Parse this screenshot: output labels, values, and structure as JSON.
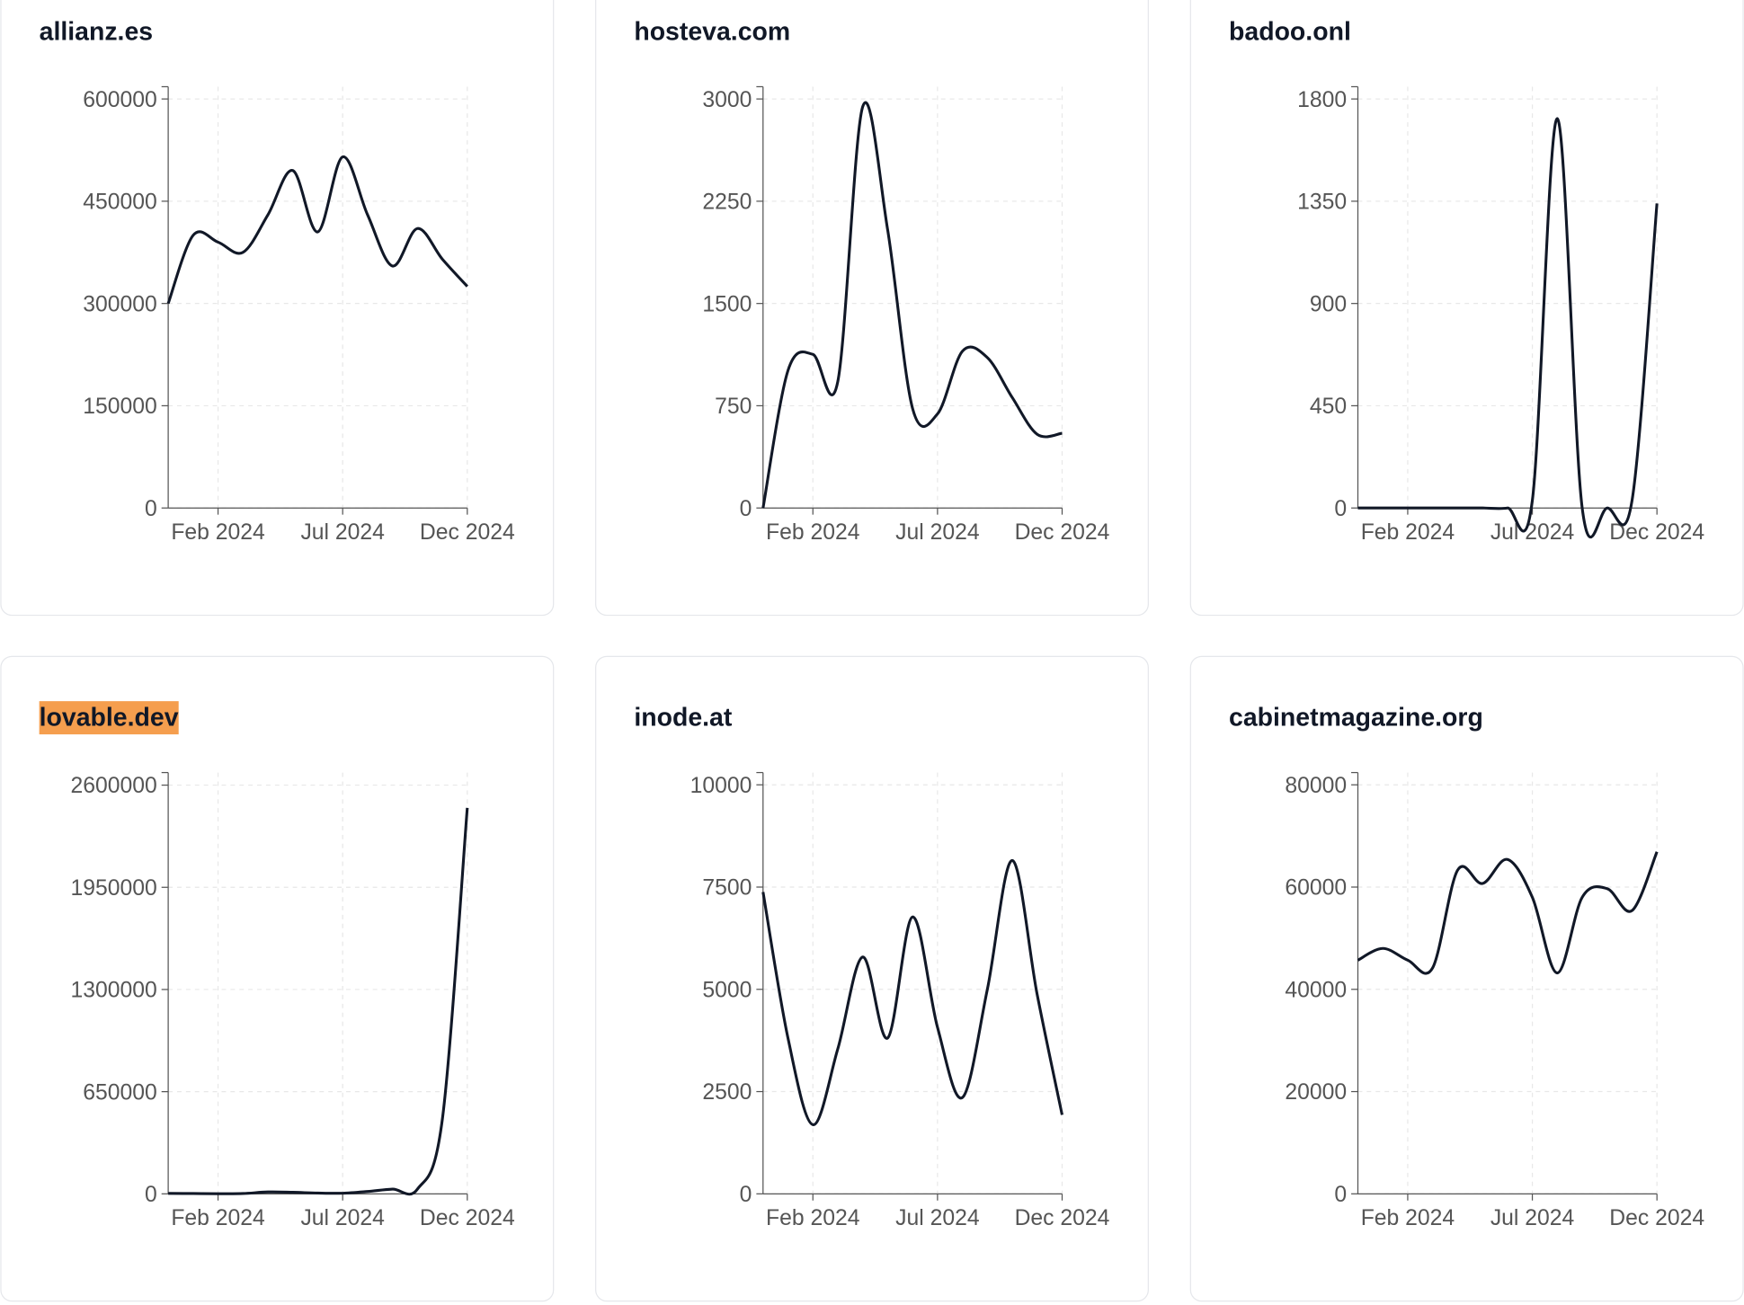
{
  "chart_data": [
    {
      "type": "line",
      "title": "allianz.es",
      "categories": [
        null,
        null,
        "Feb 2024",
        null,
        null,
        null,
        null,
        "Jul 2024",
        null,
        null,
        null,
        null,
        "Dec 2024"
      ],
      "series": [
        {
          "name": null,
          "color": "#111827",
          "values": [
            300000,
            400000,
            390000,
            375000,
            430000,
            495000,
            405000,
            515000,
            430000,
            355000,
            410000,
            365000,
            325000
          ]
        }
      ],
      "ylim": [
        0,
        618000
      ],
      "yticks": [
        0,
        150000,
        300000,
        450000,
        600000
      ],
      "grid": true
    },
    {
      "type": "line",
      "title": "hosteva.com",
      "categories": [
        null,
        null,
        "Feb 2024",
        null,
        null,
        null,
        null,
        "Jul 2024",
        null,
        null,
        null,
        null,
        "Dec 2024"
      ],
      "series": [
        {
          "name": null,
          "color": "#111827",
          "values": [
            0,
            1008,
            1127,
            928,
            2944,
            2040,
            730,
            690,
            1150,
            1103,
            810,
            540,
            548
          ]
        }
      ],
      "ylim": [
        0,
        3090
      ],
      "yticks": [
        0,
        750,
        1500,
        2250,
        3000
      ],
      "grid": true
    },
    {
      "type": "line",
      "title": "badoo.onl",
      "categories": [
        null,
        null,
        "Feb 2024",
        null,
        null,
        null,
        null,
        "Jul 2024",
        null,
        null,
        null,
        null,
        "Dec 2024"
      ],
      "series": [
        {
          "name": null,
          "color": "#111827",
          "values": [
            0,
            0,
            0,
            0,
            0,
            0,
            0,
            33,
            1714,
            0,
            0,
            33,
            1340
          ]
        }
      ],
      "ylim": [
        0,
        1854
      ],
      "yticks": [
        0,
        450,
        900,
        1350,
        1800
      ],
      "grid": true
    },
    {
      "type": "line",
      "title": "lovable.dev",
      "title_background": "#f59e4e",
      "categories": [
        null,
        null,
        "Feb 2024",
        null,
        null,
        null,
        null,
        "Jul 2024",
        null,
        null,
        null,
        null,
        "Dec 2024"
      ],
      "series": [
        {
          "name": null,
          "color": "#111827",
          "values": [
            3000,
            2000,
            1000,
            2000,
            12000,
            10000,
            5000,
            4000,
            15000,
            30000,
            30000,
            475000,
            2455000
          ]
        }
      ],
      "ylim": [
        0,
        2680000
      ],
      "yticks": [
        0,
        650000,
        1300000,
        1950000,
        2600000
      ],
      "grid": true
    },
    {
      "type": "line",
      "title": "inode.at",
      "categories": [
        null,
        null,
        "Feb 2024",
        null,
        null,
        null,
        null,
        "Jul 2024",
        null,
        null,
        null,
        null,
        "Dec 2024"
      ],
      "series": [
        {
          "name": null,
          "color": "#111827",
          "values": [
            7380,
            3810,
            1690,
            3545,
            5790,
            3810,
            6770,
            4070,
            2355,
            5000,
            8150,
            4870,
            1930
          ]
        }
      ],
      "ylim": [
        0,
        10300
      ],
      "yticks": [
        0,
        2500,
        5000,
        7500,
        10000
      ],
      "grid": true
    },
    {
      "type": "line",
      "title": "cabinetmagazine.org",
      "categories": [
        null,
        null,
        "Feb 2024",
        null,
        null,
        null,
        null,
        "Jul 2024",
        null,
        null,
        null,
        null,
        "Dec 2024"
      ],
      "series": [
        {
          "name": null,
          "color": "#111827",
          "values": [
            45700,
            48000,
            45700,
            44200,
            63300,
            60700,
            65400,
            58000,
            43200,
            58000,
            59700,
            55400,
            66900
          ]
        }
      ],
      "ylim": [
        0,
        82400
      ],
      "yticks": [
        0,
        20000,
        40000,
        60000,
        80000
      ],
      "grid": true
    }
  ]
}
